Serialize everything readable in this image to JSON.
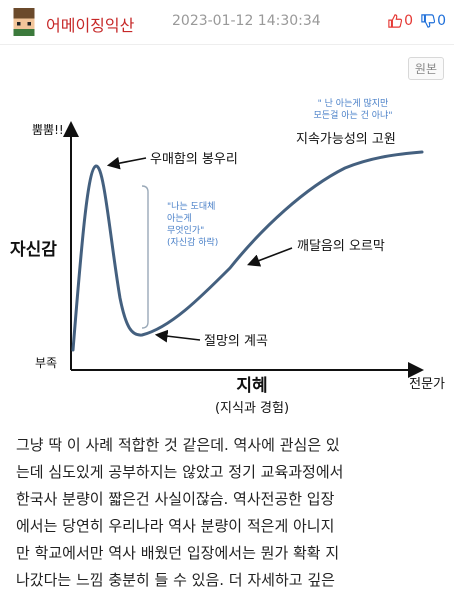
{
  "post": {
    "author": "어메이징익산",
    "timestamp": "2023-01-12 14:30:34",
    "upvotes": "0",
    "downvotes": "0",
    "original_button": "원본"
  },
  "graph": {
    "y_top": "뿜뿜!!",
    "y_mid": "자신감",
    "y_bottom": "부족",
    "x_title": "지혜",
    "x_subtitle": "(지식과 경험)",
    "x_end": "전문가",
    "peak_label": "우매함의 봉우리",
    "bracket_line1": "\"나는 도대체",
    "bracket_line2": "아는게",
    "bracket_line3": "무엇인가\"",
    "bracket_line4": "(자신감 하락)",
    "valley_label": "절망의 계곡",
    "slope_label": "깨달음의 오르막",
    "plateau_label": "지속가능성의 고원",
    "quote_line1": "\" 난 아는게 많지만",
    "quote_line2": "모든걸 아는 건 아냐\"",
    "curve_color": "#44607f",
    "note_color": "#4a80c8"
  },
  "body": {
    "line1": "그냥 딱 이 사례 적합한 것 같은데. 역사에 관심은 있",
    "line2": "는데 심도있게 공부하지는 않았고 정기 교육과정에서",
    "line3": "한국사 분량이 짧은건 사실이잖슴. 역사전공한 입장",
    "line4": "에서는 당연히 우리나라 역사 분량이 적은게 아니지",
    "line5": "만 학교에서만 역사 배웠던 입장에서는 뭔가 확확 지",
    "line6": "나갔다는 느낌 충분히 들 수 있음. 더 자세하고 깊은"
  },
  "icons": {
    "avatar": "pixel-avatar-icon",
    "upvote": "thumbs-up-icon",
    "downvote": "thumbs-down-icon"
  }
}
